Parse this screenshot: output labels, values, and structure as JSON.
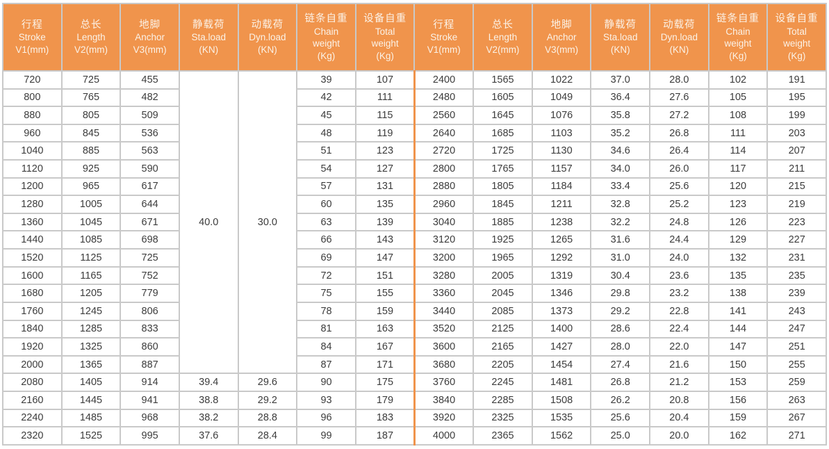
{
  "table": {
    "colors": {
      "header_bg": "#f0944c",
      "header_text": "#fbf2e7",
      "grid_line": "#c9c9c9",
      "body_text": "#3c3c3c",
      "half_divider": "#f0944c"
    },
    "columns": [
      {
        "key": "stroke",
        "lines": [
          "行程",
          "Stroke",
          "V1(mm)"
        ]
      },
      {
        "key": "length",
        "lines": [
          "总长",
          "Length",
          "V2(mm)"
        ]
      },
      {
        "key": "anchor",
        "lines": [
          "地脚",
          "Anchor",
          "V3(mm)"
        ]
      },
      {
        "key": "sta-load",
        "lines": [
          "静载荷",
          "Sta.load",
          "(KN)"
        ]
      },
      {
        "key": "dyn-load",
        "lines": [
          "动载荷",
          "Dyn.load",
          "(KN)"
        ]
      },
      {
        "key": "chain-weight",
        "lines": [
          "链条自重",
          "Chain",
          "weight",
          "(Kg)"
        ]
      },
      {
        "key": "total-weight",
        "lines": [
          "设备自重",
          "Total",
          "weight",
          "(Kg)"
        ]
      }
    ],
    "merged": {
      "sta": "40.0",
      "dyn": "30.0",
      "row_span": 17
    },
    "left_rows": [
      [
        "720",
        "725",
        "455",
        null,
        null,
        "39",
        "107"
      ],
      [
        "800",
        "765",
        "482",
        null,
        null,
        "42",
        "111"
      ],
      [
        "880",
        "805",
        "509",
        null,
        null,
        "45",
        "115"
      ],
      [
        "960",
        "845",
        "536",
        null,
        null,
        "48",
        "119"
      ],
      [
        "1040",
        "885",
        "563",
        null,
        null,
        "51",
        "123"
      ],
      [
        "1120",
        "925",
        "590",
        null,
        null,
        "54",
        "127"
      ],
      [
        "1200",
        "965",
        "617",
        null,
        null,
        "57",
        "131"
      ],
      [
        "1280",
        "1005",
        "644",
        null,
        null,
        "60",
        "135"
      ],
      [
        "1360",
        "1045",
        "671",
        null,
        null,
        "63",
        "139"
      ],
      [
        "1440",
        "1085",
        "698",
        null,
        null,
        "66",
        "143"
      ],
      [
        "1520",
        "1125",
        "725",
        null,
        null,
        "69",
        "147"
      ],
      [
        "1600",
        "1165",
        "752",
        null,
        null,
        "72",
        "151"
      ],
      [
        "1680",
        "1205",
        "779",
        null,
        null,
        "75",
        "155"
      ],
      [
        "1760",
        "1245",
        "806",
        null,
        null,
        "78",
        "159"
      ],
      [
        "1840",
        "1285",
        "833",
        null,
        null,
        "81",
        "163"
      ],
      [
        "1920",
        "1325",
        "860",
        null,
        null,
        "84",
        "167"
      ],
      [
        "2000",
        "1365",
        "887",
        null,
        null,
        "87",
        "171"
      ],
      [
        "2080",
        "1405",
        "914",
        "39.4",
        "29.6",
        "90",
        "175"
      ],
      [
        "2160",
        "1445",
        "941",
        "38.8",
        "29.2",
        "93",
        "179"
      ],
      [
        "2240",
        "1485",
        "968",
        "38.2",
        "28.8",
        "96",
        "183"
      ],
      [
        "2320",
        "1525",
        "995",
        "37.6",
        "28.4",
        "99",
        "187"
      ]
    ],
    "right_rows": [
      [
        "2400",
        "1565",
        "1022",
        "37.0",
        "28.0",
        "102",
        "191"
      ],
      [
        "2480",
        "1605",
        "1049",
        "36.4",
        "27.6",
        "105",
        "195"
      ],
      [
        "2560",
        "1645",
        "1076",
        "35.8",
        "27.2",
        "108",
        "199"
      ],
      [
        "2640",
        "1685",
        "1103",
        "35.2",
        "26.8",
        "111",
        "203"
      ],
      [
        "2720",
        "1725",
        "1130",
        "34.6",
        "26.4",
        "114",
        "207"
      ],
      [
        "2800",
        "1765",
        "1157",
        "34.0",
        "26.0",
        "117",
        "211"
      ],
      [
        "2880",
        "1805",
        "1184",
        "33.4",
        "25.6",
        "120",
        "215"
      ],
      [
        "2960",
        "1845",
        "1211",
        "32.8",
        "25.2",
        "123",
        "219"
      ],
      [
        "3040",
        "1885",
        "1238",
        "32.2",
        "24.8",
        "126",
        "223"
      ],
      [
        "3120",
        "1925",
        "1265",
        "31.6",
        "24.4",
        "129",
        "227"
      ],
      [
        "3200",
        "1965",
        "1292",
        "31.0",
        "24.0",
        "132",
        "231"
      ],
      [
        "3280",
        "2005",
        "1319",
        "30.4",
        "23.6",
        "135",
        "235"
      ],
      [
        "3360",
        "2045",
        "1346",
        "29.8",
        "23.2",
        "138",
        "239"
      ],
      [
        "3440",
        "2085",
        "1373",
        "29.2",
        "22.8",
        "141",
        "243"
      ],
      [
        "3520",
        "2125",
        "1400",
        "28.6",
        "22.4",
        "144",
        "247"
      ],
      [
        "3600",
        "2165",
        "1427",
        "28.0",
        "22.0",
        "147",
        "251"
      ],
      [
        "3680",
        "2205",
        "1454",
        "27.4",
        "21.6",
        "150",
        "255"
      ],
      [
        "3760",
        "2245",
        "1481",
        "26.8",
        "21.2",
        "153",
        "259"
      ],
      [
        "3840",
        "2285",
        "1508",
        "26.2",
        "20.8",
        "156",
        "263"
      ],
      [
        "3920",
        "2325",
        "1535",
        "25.6",
        "20.4",
        "159",
        "267"
      ],
      [
        "4000",
        "2365",
        "1562",
        "25.0",
        "20.0",
        "162",
        "271"
      ]
    ]
  }
}
